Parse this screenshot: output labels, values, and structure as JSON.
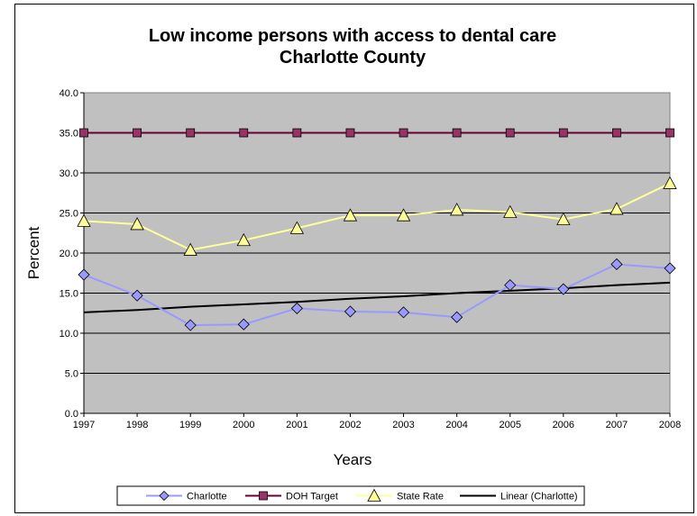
{
  "chart_data": {
    "type": "line",
    "title": "Low income persons with access to dental care",
    "subtitle": "Charlotte County",
    "xlabel": "Years",
    "ylabel": "Percent",
    "x": [
      "1997",
      "1998",
      "1999",
      "2000",
      "2001",
      "2002",
      "2003",
      "2004",
      "2005",
      "2006",
      "2007",
      "2008"
    ],
    "ylim": [
      0,
      40
    ],
    "yticks": [
      "0.0",
      "5.0",
      "10.0",
      "15.0",
      "20.0",
      "25.0",
      "30.0",
      "35.0",
      "40.0"
    ],
    "grid": true,
    "legend_position": "bottom",
    "series": [
      {
        "name": "Charlotte",
        "values": [
          17.3,
          14.7,
          11.0,
          11.1,
          13.1,
          12.7,
          12.6,
          12.0,
          16.0,
          15.5,
          18.6,
          18.1
        ],
        "color": "#9999ff",
        "marker": "diamond",
        "marker_fill": "#9999ff"
      },
      {
        "name": "DOH Target",
        "values": [
          35,
          35,
          35,
          35,
          35,
          35,
          35,
          35,
          35,
          35,
          35,
          35
        ],
        "color": "#660033",
        "marker": "square",
        "marker_fill": "#993366"
      },
      {
        "name": "State Rate",
        "values": [
          24.0,
          23.6,
          20.4,
          21.6,
          23.1,
          24.7,
          24.7,
          25.4,
          25.1,
          24.2,
          25.5,
          28.7
        ],
        "color": "#ffff99",
        "marker": "triangle",
        "marker_fill": "#ffff99"
      },
      {
        "name": "Linear (Charlotte)",
        "values": [
          12.6,
          12.9,
          13.3,
          13.6,
          13.9,
          14.3,
          14.6,
          15.0,
          15.3,
          15.6,
          16.0,
          16.3
        ],
        "color": "#000000",
        "marker": "none"
      }
    ]
  }
}
